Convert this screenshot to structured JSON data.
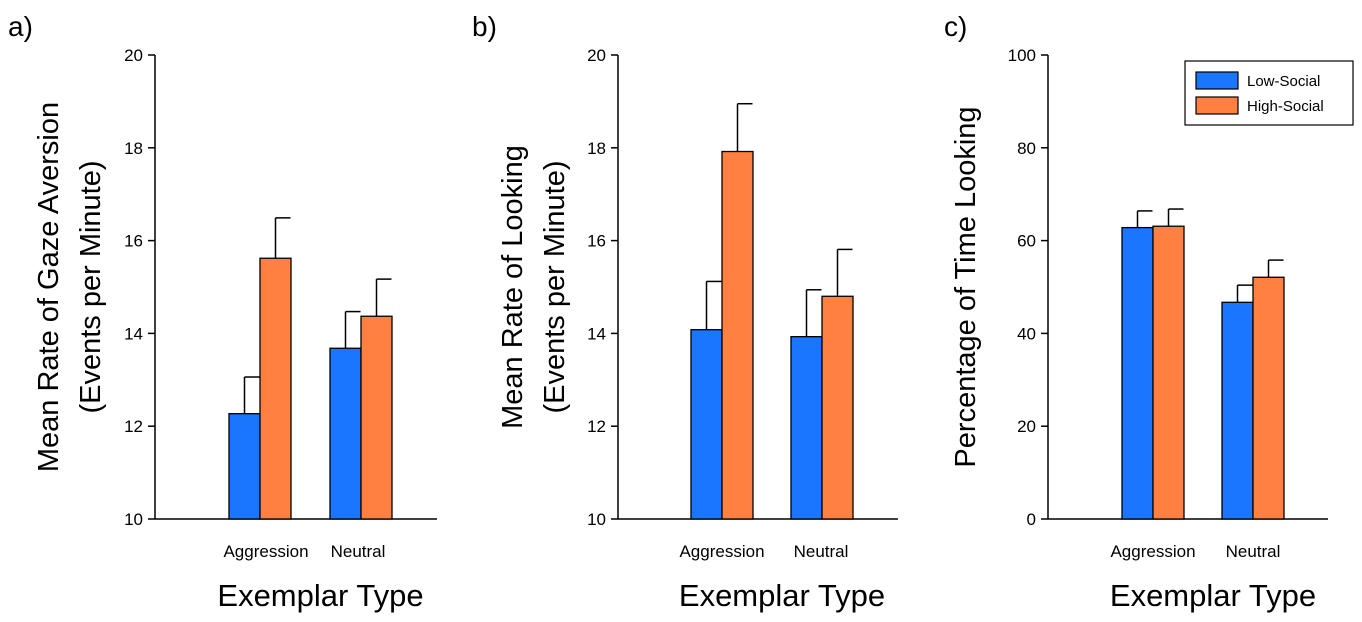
{
  "chart_data": [
    {
      "panel_label": "a)",
      "type": "bar",
      "categories": [
        "Aggression",
        "Neutral"
      ],
      "series": [
        {
          "name": "Low-Social",
          "color": "#1a75ff",
          "values": [
            12.27,
            13.68
          ],
          "errors": [
            0.79,
            0.79
          ]
        },
        {
          "name": "High-Social",
          "color": "#ff8040",
          "values": [
            15.62,
            14.37
          ],
          "errors": [
            0.87,
            0.8
          ]
        }
      ],
      "ylabel_line1": "Mean Rate of Gaze Aversion",
      "ylabel_line2": "(Events per Minute)",
      "xlabel": "Exemplar Type",
      "ylim": [
        10,
        20
      ],
      "yticks": [
        10,
        12,
        14,
        16,
        18,
        20
      ],
      "legend": null
    },
    {
      "panel_label": "b)",
      "type": "bar",
      "categories": [
        "Aggression",
        "Neutral"
      ],
      "series": [
        {
          "name": "Low-Social",
          "color": "#1a75ff",
          "values": [
            14.08,
            13.93
          ],
          "errors": [
            1.04,
            1.01
          ]
        },
        {
          "name": "High-Social",
          "color": "#ff8040",
          "values": [
            17.92,
            14.8
          ],
          "errors": [
            1.03,
            1.01
          ]
        }
      ],
      "ylabel_line1": "Mean Rate of Looking",
      "ylabel_line2": "(Events per Minute)",
      "xlabel": "Exemplar Type",
      "ylim": [
        10,
        20
      ],
      "yticks": [
        10,
        12,
        14,
        16,
        18,
        20
      ],
      "legend": null
    },
    {
      "panel_label": "c)",
      "type": "bar",
      "categories": [
        "Aggression",
        "Neutral"
      ],
      "series": [
        {
          "name": "Low-Social",
          "color": "#1a75ff",
          "values": [
            62.8,
            46.7
          ],
          "errors": [
            3.6,
            3.7
          ]
        },
        {
          "name": "High-Social",
          "color": "#ff8040",
          "values": [
            63.1,
            52.1
          ],
          "errors": [
            3.7,
            3.7
          ]
        }
      ],
      "ylabel_line1": "Percentage of Time Looking",
      "ylabel_line2": "",
      "xlabel": "Exemplar Type",
      "ylim": [
        0,
        100
      ],
      "yticks": [
        0,
        20,
        40,
        60,
        80,
        100
      ],
      "legend": "top-right"
    }
  ]
}
